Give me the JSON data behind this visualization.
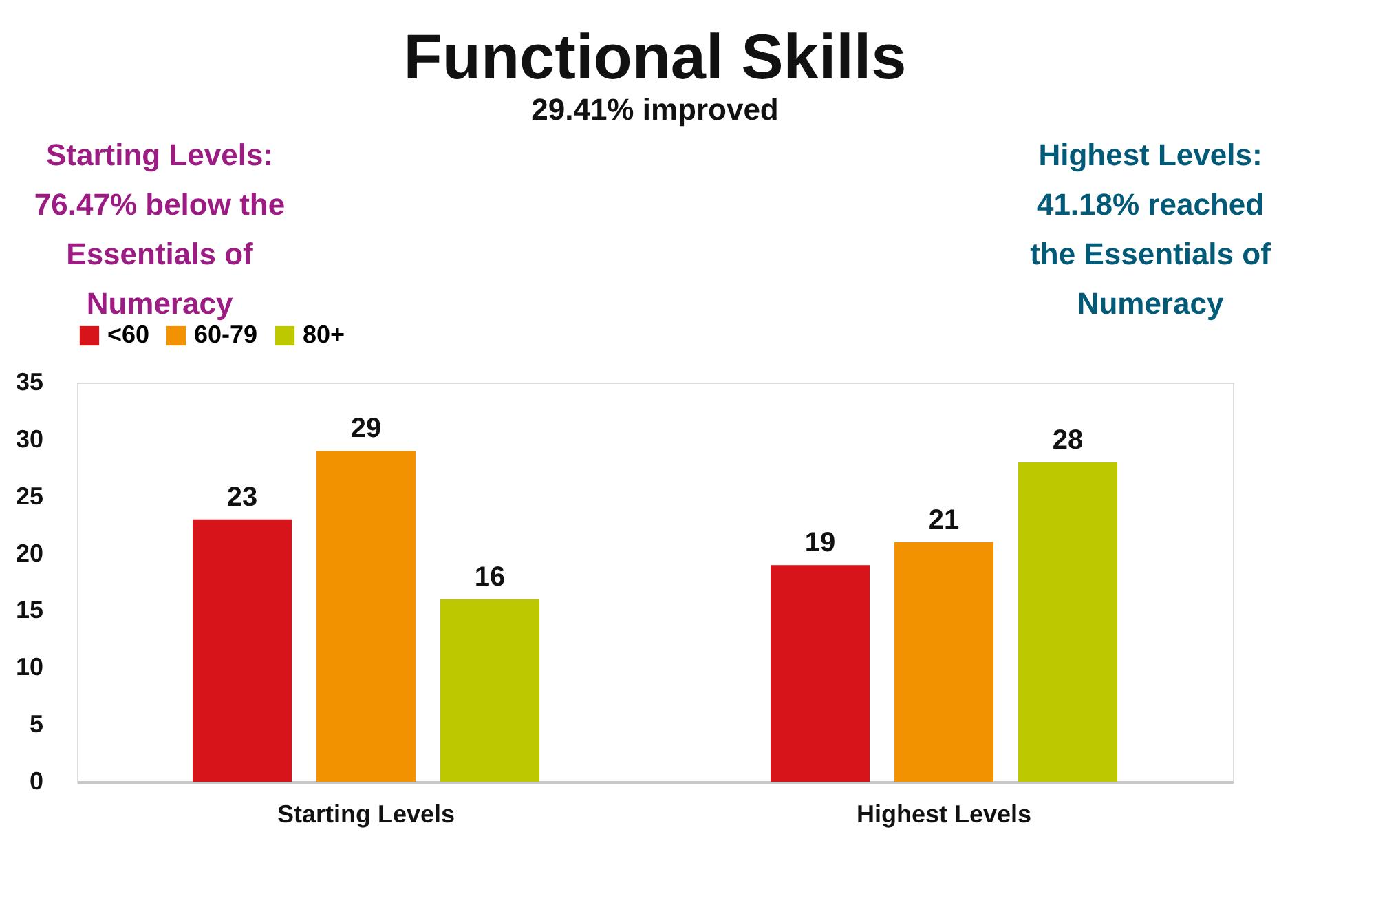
{
  "chart_data": {
    "type": "bar",
    "title": "Functional Skills",
    "subtitle": "29.41% improved",
    "categories": [
      "Starting Levels",
      "Highest Levels"
    ],
    "series": [
      {
        "name": "<60",
        "color": "#d7141a",
        "values": [
          23,
          19
        ]
      },
      {
        "name": "60-79",
        "color": "#f39200",
        "values": [
          29,
          21
        ]
      },
      {
        "name": "80+",
        "color": "#bec800",
        "values": [
          16,
          28
        ]
      }
    ],
    "ylim": [
      0,
      35
    ],
    "yticks": [
      0,
      5,
      10,
      15,
      20,
      25,
      30,
      35
    ],
    "grid": false,
    "legend": "top",
    "data_labels": true,
    "annotations": [
      "Starting Levels: 76.47% below the Essentials of Numeracy",
      "Highest Levels: 41.18% reached the Essentials of Numeracy"
    ]
  }
}
